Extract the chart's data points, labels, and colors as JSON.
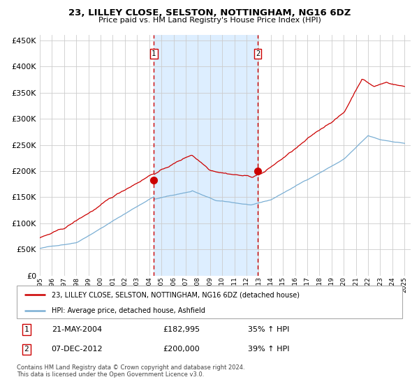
{
  "title": "23, LILLEY CLOSE, SELSTON, NOTTINGHAM, NG16 6DZ",
  "subtitle": "Price paid vs. HM Land Registry's House Price Index (HPI)",
  "legend_line1": "23, LILLEY CLOSE, SELSTON, NOTTINGHAM, NG16 6DZ (detached house)",
  "legend_line2": "HPI: Average price, detached house, Ashfield",
  "annotation1_date": "21-MAY-2004",
  "annotation1_price": 182995,
  "annotation1_price_str": "£182,995",
  "annotation1_hpi": "35% ↑ HPI",
  "annotation2_date": "07-DEC-2012",
  "annotation2_price": 200000,
  "annotation2_price_str": "£200,000",
  "annotation2_hpi": "39% ↑ HPI",
  "footer": "Contains HM Land Registry data © Crown copyright and database right 2024.\nThis data is licensed under the Open Government Licence v3.0.",
  "red_color": "#cc0000",
  "blue_color": "#7bafd4",
  "bg_color": "#ddeeff",
  "grid_color": "#cccccc",
  "ylim": [
    0,
    460000
  ],
  "yticks": [
    0,
    50000,
    100000,
    150000,
    200000,
    250000,
    300000,
    350000,
    400000,
    450000
  ],
  "sale1_year": 2004.38,
  "sale2_year": 2012.92
}
